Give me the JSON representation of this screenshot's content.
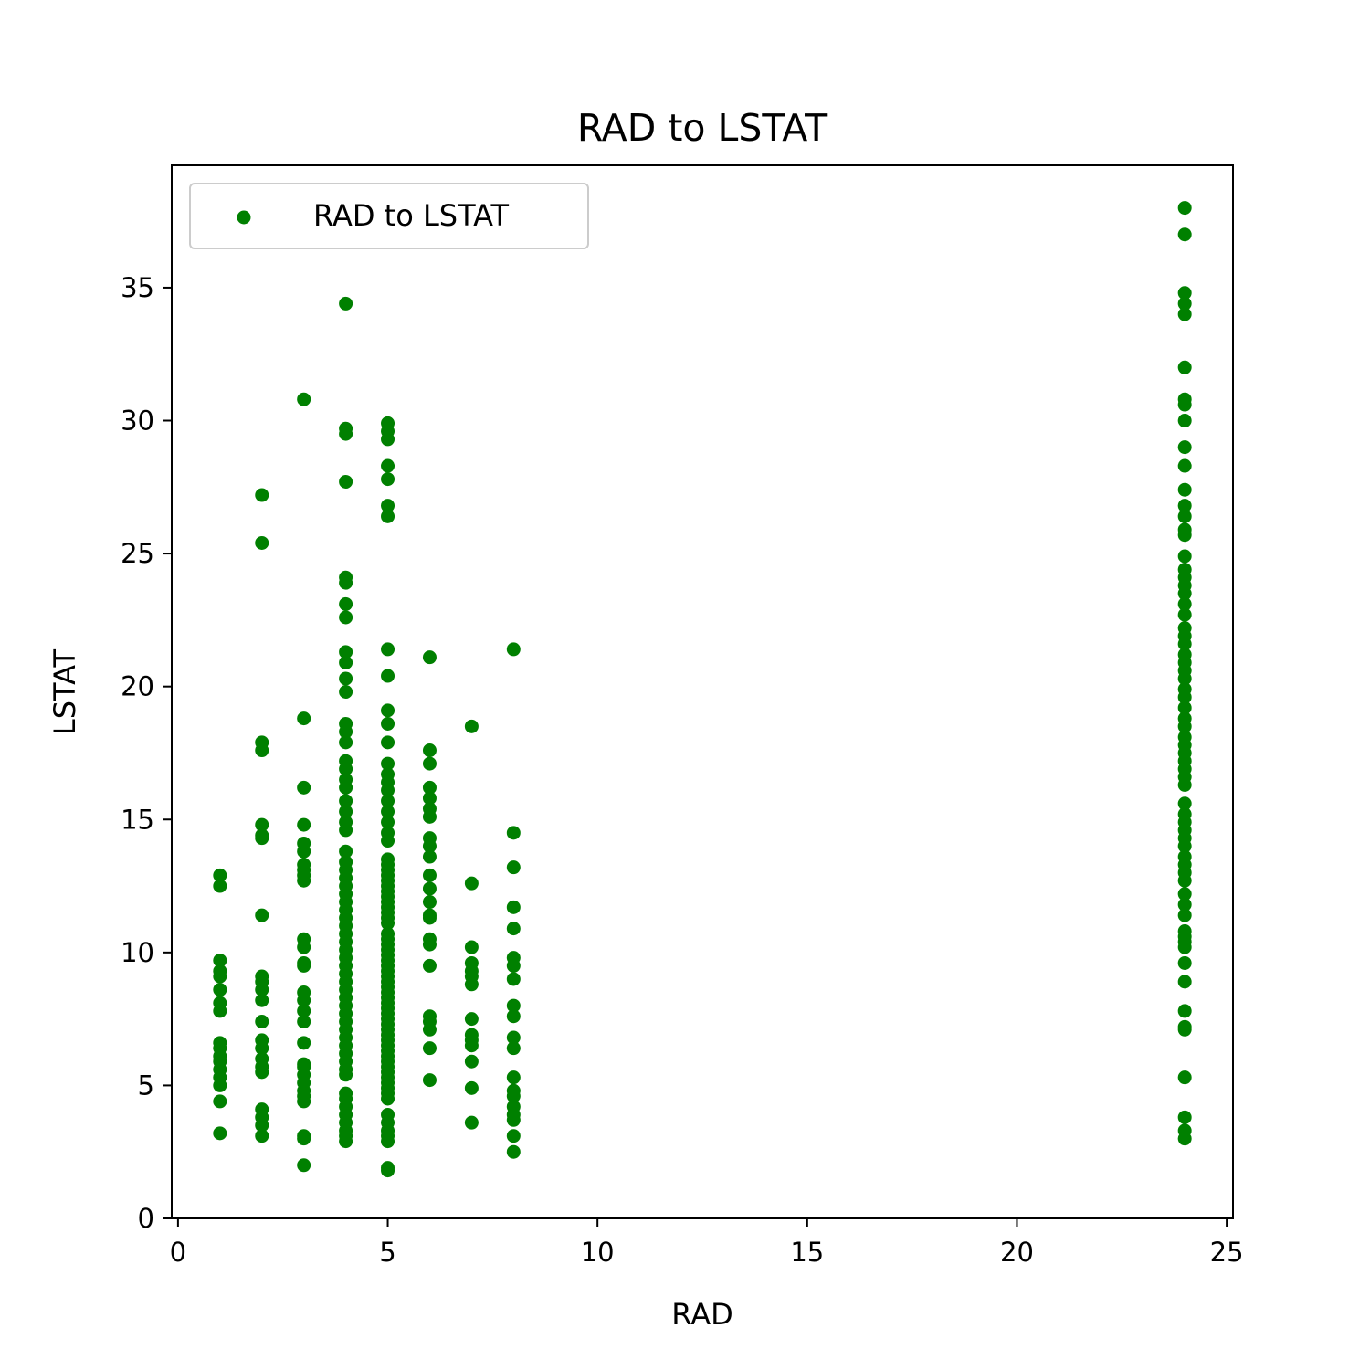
{
  "chart_data": {
    "type": "scatter",
    "title": "RAD to LSTAT",
    "xlabel": "RAD",
    "ylabel": "LSTAT",
    "xlim": [
      -0.15,
      25.15
    ],
    "ylim": [
      0,
      39.6
    ],
    "xticks": [
      0,
      5,
      10,
      15,
      20,
      25
    ],
    "yticks": [
      0,
      5,
      10,
      15,
      20,
      25,
      30,
      35
    ],
    "grid": false,
    "legend": "top-left",
    "series": [
      {
        "name": "RAD to LSTAT",
        "color": "#008000",
        "points": [
          [
            1,
            3.2
          ],
          [
            1,
            4.4
          ],
          [
            1,
            5.0
          ],
          [
            1,
            5.3
          ],
          [
            1,
            5.6
          ],
          [
            1,
            5.9
          ],
          [
            1,
            6.1
          ],
          [
            1,
            6.4
          ],
          [
            1,
            6.6
          ],
          [
            1,
            7.8
          ],
          [
            1,
            8.1
          ],
          [
            1,
            8.6
          ],
          [
            1,
            9.1
          ],
          [
            1,
            9.3
          ],
          [
            1,
            9.7
          ],
          [
            1,
            12.5
          ],
          [
            1,
            12.9
          ],
          [
            2,
            3.1
          ],
          [
            2,
            3.5
          ],
          [
            2,
            3.8
          ],
          [
            2,
            4.1
          ],
          [
            2,
            5.5
          ],
          [
            2,
            5.7
          ],
          [
            2,
            6.0
          ],
          [
            2,
            6.4
          ],
          [
            2,
            6.7
          ],
          [
            2,
            7.4
          ],
          [
            2,
            8.2
          ],
          [
            2,
            8.6
          ],
          [
            2,
            8.9
          ],
          [
            2,
            9.1
          ],
          [
            2,
            11.4
          ],
          [
            2,
            14.3
          ],
          [
            2,
            14.4
          ],
          [
            2,
            14.8
          ],
          [
            2,
            17.6
          ],
          [
            2,
            17.9
          ],
          [
            2,
            25.4
          ],
          [
            2,
            27.2
          ],
          [
            3,
            2.0
          ],
          [
            3,
            3.0
          ],
          [
            3,
            3.1
          ],
          [
            3,
            4.4
          ],
          [
            3,
            4.6
          ],
          [
            3,
            4.8
          ],
          [
            3,
            5.1
          ],
          [
            3,
            5.4
          ],
          [
            3,
            5.7
          ],
          [
            3,
            5.8
          ],
          [
            3,
            6.6
          ],
          [
            3,
            7.4
          ],
          [
            3,
            7.8
          ],
          [
            3,
            8.2
          ],
          [
            3,
            8.5
          ],
          [
            3,
            9.5
          ],
          [
            3,
            9.6
          ],
          [
            3,
            10.2
          ],
          [
            3,
            10.5
          ],
          [
            3,
            12.7
          ],
          [
            3,
            12.9
          ],
          [
            3,
            13.1
          ],
          [
            3,
            13.3
          ],
          [
            3,
            13.8
          ],
          [
            3,
            14.1
          ],
          [
            3,
            14.8
          ],
          [
            3,
            16.2
          ],
          [
            3,
            18.8
          ],
          [
            3,
            30.8
          ],
          [
            4,
            2.9
          ],
          [
            4,
            3.1
          ],
          [
            4,
            3.3
          ],
          [
            4,
            3.6
          ],
          [
            4,
            3.9
          ],
          [
            4,
            4.2
          ],
          [
            4,
            4.5
          ],
          [
            4,
            4.7
          ],
          [
            4,
            5.4
          ],
          [
            4,
            5.6
          ],
          [
            4,
            5.9
          ],
          [
            4,
            6.2
          ],
          [
            4,
            6.5
          ],
          [
            4,
            6.8
          ],
          [
            4,
            7.1
          ],
          [
            4,
            7.4
          ],
          [
            4,
            7.7
          ],
          [
            4,
            8.0
          ],
          [
            4,
            8.3
          ],
          [
            4,
            8.6
          ],
          [
            4,
            8.9
          ],
          [
            4,
            9.2
          ],
          [
            4,
            9.5
          ],
          [
            4,
            9.8
          ],
          [
            4,
            10.1
          ],
          [
            4,
            10.4
          ],
          [
            4,
            10.7
          ],
          [
            4,
            11.0
          ],
          [
            4,
            11.3
          ],
          [
            4,
            11.6
          ],
          [
            4,
            11.9
          ],
          [
            4,
            12.2
          ],
          [
            4,
            12.5
          ],
          [
            4,
            12.8
          ],
          [
            4,
            13.1
          ],
          [
            4,
            13.4
          ],
          [
            4,
            13.8
          ],
          [
            4,
            14.6
          ],
          [
            4,
            14.9
          ],
          [
            4,
            15.3
          ],
          [
            4,
            15.7
          ],
          [
            4,
            16.2
          ],
          [
            4,
            16.5
          ],
          [
            4,
            16.9
          ],
          [
            4,
            17.2
          ],
          [
            4,
            17.9
          ],
          [
            4,
            18.3
          ],
          [
            4,
            18.6
          ],
          [
            4,
            19.8
          ],
          [
            4,
            20.3
          ],
          [
            4,
            20.9
          ],
          [
            4,
            21.3
          ],
          [
            4,
            22.6
          ],
          [
            4,
            23.1
          ],
          [
            4,
            23.9
          ],
          [
            4,
            24.1
          ],
          [
            4,
            27.7
          ],
          [
            4,
            29.5
          ],
          [
            4,
            29.7
          ],
          [
            4,
            34.4
          ],
          [
            5,
            1.8
          ],
          [
            5,
            1.9
          ],
          [
            5,
            2.9
          ],
          [
            5,
            3.1
          ],
          [
            5,
            3.3
          ],
          [
            5,
            3.6
          ],
          [
            5,
            3.9
          ],
          [
            5,
            4.5
          ],
          [
            5,
            4.7
          ],
          [
            5,
            4.9
          ],
          [
            5,
            5.1
          ],
          [
            5,
            5.3
          ],
          [
            5,
            5.5
          ],
          [
            5,
            5.7
          ],
          [
            5,
            5.9
          ],
          [
            5,
            6.1
          ],
          [
            5,
            6.3
          ],
          [
            5,
            6.5
          ],
          [
            5,
            6.7
          ],
          [
            5,
            6.9
          ],
          [
            5,
            7.1
          ],
          [
            5,
            7.3
          ],
          [
            5,
            7.5
          ],
          [
            5,
            7.7
          ],
          [
            5,
            7.9
          ],
          [
            5,
            8.1
          ],
          [
            5,
            8.3
          ],
          [
            5,
            8.5
          ],
          [
            5,
            8.7
          ],
          [
            5,
            8.9
          ],
          [
            5,
            9.1
          ],
          [
            5,
            9.3
          ],
          [
            5,
            9.5
          ],
          [
            5,
            9.7
          ],
          [
            5,
            9.9
          ],
          [
            5,
            10.1
          ],
          [
            5,
            10.3
          ],
          [
            5,
            10.5
          ],
          [
            5,
            10.7
          ],
          [
            5,
            11.1
          ],
          [
            5,
            11.3
          ],
          [
            5,
            11.5
          ],
          [
            5,
            11.7
          ],
          [
            5,
            11.9
          ],
          [
            5,
            12.1
          ],
          [
            5,
            12.3
          ],
          [
            5,
            12.5
          ],
          [
            5,
            12.7
          ],
          [
            5,
            12.9
          ],
          [
            5,
            13.1
          ],
          [
            5,
            13.3
          ],
          [
            5,
            13.5
          ],
          [
            5,
            14.2
          ],
          [
            5,
            14.5
          ],
          [
            5,
            14.9
          ],
          [
            5,
            15.3
          ],
          [
            5,
            15.7
          ],
          [
            5,
            16.1
          ],
          [
            5,
            16.4
          ],
          [
            5,
            16.7
          ],
          [
            5,
            17.1
          ],
          [
            5,
            17.9
          ],
          [
            5,
            18.6
          ],
          [
            5,
            19.1
          ],
          [
            5,
            20.4
          ],
          [
            5,
            21.4
          ],
          [
            5,
            26.4
          ],
          [
            5,
            26.8
          ],
          [
            5,
            27.8
          ],
          [
            5,
            28.3
          ],
          [
            5,
            29.3
          ],
          [
            5,
            29.6
          ],
          [
            5,
            29.9
          ],
          [
            6,
            5.2
          ],
          [
            6,
            6.4
          ],
          [
            6,
            7.1
          ],
          [
            6,
            7.4
          ],
          [
            6,
            7.6
          ],
          [
            6,
            9.5
          ],
          [
            6,
            10.3
          ],
          [
            6,
            10.5
          ],
          [
            6,
            11.3
          ],
          [
            6,
            11.4
          ],
          [
            6,
            11.9
          ],
          [
            6,
            12.4
          ],
          [
            6,
            12.9
          ],
          [
            6,
            13.6
          ],
          [
            6,
            14.0
          ],
          [
            6,
            14.3
          ],
          [
            6,
            15.1
          ],
          [
            6,
            15.4
          ],
          [
            6,
            15.8
          ],
          [
            6,
            16.2
          ],
          [
            6,
            17.1
          ],
          [
            6,
            17.6
          ],
          [
            6,
            21.1
          ],
          [
            7,
            3.6
          ],
          [
            7,
            4.9
          ],
          [
            7,
            5.9
          ],
          [
            7,
            6.5
          ],
          [
            7,
            6.7
          ],
          [
            7,
            6.9
          ],
          [
            7,
            7.5
          ],
          [
            7,
            8.8
          ],
          [
            7,
            9.1
          ],
          [
            7,
            9.3
          ],
          [
            7,
            9.6
          ],
          [
            7,
            10.2
          ],
          [
            7,
            12.6
          ],
          [
            7,
            18.5
          ],
          [
            8,
            2.5
          ],
          [
            8,
            3.1
          ],
          [
            8,
            3.7
          ],
          [
            8,
            3.9
          ],
          [
            8,
            4.2
          ],
          [
            8,
            4.6
          ],
          [
            8,
            4.8
          ],
          [
            8,
            5.3
          ],
          [
            8,
            6.4
          ],
          [
            8,
            6.8
          ],
          [
            8,
            7.6
          ],
          [
            8,
            8.0
          ],
          [
            8,
            9.0
          ],
          [
            8,
            9.5
          ],
          [
            8,
            9.8
          ],
          [
            8,
            10.9
          ],
          [
            8,
            11.7
          ],
          [
            8,
            13.2
          ],
          [
            8,
            14.5
          ],
          [
            8,
            21.4
          ],
          [
            24,
            3.0
          ],
          [
            24,
            3.3
          ],
          [
            24,
            3.8
          ],
          [
            24,
            5.3
          ],
          [
            24,
            7.1
          ],
          [
            24,
            7.2
          ],
          [
            24,
            7.8
          ],
          [
            24,
            8.9
          ],
          [
            24,
            9.6
          ],
          [
            24,
            10.2
          ],
          [
            24,
            10.4
          ],
          [
            24,
            10.6
          ],
          [
            24,
            10.8
          ],
          [
            24,
            11.4
          ],
          [
            24,
            11.8
          ],
          [
            24,
            12.2
          ],
          [
            24,
            12.7
          ],
          [
            24,
            13.0
          ],
          [
            24,
            13.3
          ],
          [
            24,
            13.6
          ],
          [
            24,
            14.0
          ],
          [
            24,
            14.3
          ],
          [
            24,
            14.6
          ],
          [
            24,
            14.9
          ],
          [
            24,
            15.2
          ],
          [
            24,
            15.6
          ],
          [
            24,
            16.3
          ],
          [
            24,
            16.6
          ],
          [
            24,
            16.9
          ],
          [
            24,
            17.2
          ],
          [
            24,
            17.5
          ],
          [
            24,
            17.8
          ],
          [
            24,
            18.1
          ],
          [
            24,
            18.5
          ],
          [
            24,
            18.8
          ],
          [
            24,
            19.2
          ],
          [
            24,
            19.6
          ],
          [
            24,
            19.9
          ],
          [
            24,
            20.3
          ],
          [
            24,
            20.6
          ],
          [
            24,
            20.9
          ],
          [
            24,
            21.2
          ],
          [
            24,
            21.6
          ],
          [
            24,
            21.9
          ],
          [
            24,
            22.2
          ],
          [
            24,
            22.7
          ],
          [
            24,
            23.1
          ],
          [
            24,
            23.5
          ],
          [
            24,
            23.8
          ],
          [
            24,
            24.1
          ],
          [
            24,
            24.4
          ],
          [
            24,
            24.9
          ],
          [
            24,
            25.7
          ],
          [
            24,
            25.9
          ],
          [
            24,
            26.4
          ],
          [
            24,
            26.8
          ],
          [
            24,
            27.4
          ],
          [
            24,
            28.3
          ],
          [
            24,
            29.0
          ],
          [
            24,
            30.0
          ],
          [
            24,
            30.6
          ],
          [
            24,
            30.8
          ],
          [
            24,
            32.0
          ],
          [
            24,
            34.0
          ],
          [
            24,
            34.4
          ],
          [
            24,
            34.8
          ],
          [
            24,
            37.0
          ],
          [
            24,
            38.0
          ]
        ]
      }
    ]
  }
}
